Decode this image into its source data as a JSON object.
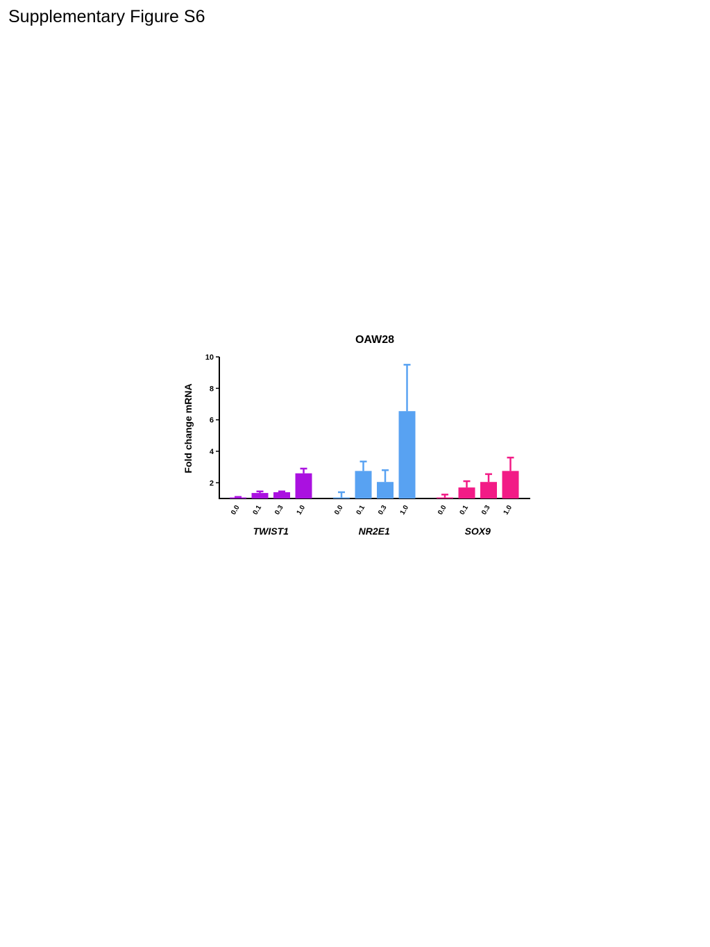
{
  "page": {
    "heading": "Supplementary Figure S6"
  },
  "chart_data": {
    "type": "bar",
    "title": "OAW28",
    "ylabel": "Fold change mRNA",
    "xlabel": "",
    "ylim": [
      1,
      10
    ],
    "yticks": [
      2,
      4,
      6,
      8,
      10
    ],
    "grid": false,
    "legend": "none",
    "categories": [
      "0.0",
      "0.1",
      "0.3",
      "1.0"
    ],
    "series": [
      {
        "name": "TWIST1",
        "color": "#aa11e0",
        "values": [
          1.05,
          1.35,
          1.4,
          2.6
        ],
        "errors": [
          0.05,
          0.1,
          0.05,
          0.3
        ]
      },
      {
        "name": "NR2E1",
        "color": "#58a2f2",
        "values": [
          1.05,
          2.75,
          2.05,
          6.55
        ],
        "errors": [
          0.35,
          0.6,
          0.75,
          2.95
        ]
      },
      {
        "name": "SOX9",
        "color": "#f21b86",
        "values": [
          1.0,
          1.7,
          2.05,
          2.75
        ],
        "errors": [
          0.25,
          0.4,
          0.5,
          0.85
        ]
      }
    ]
  }
}
